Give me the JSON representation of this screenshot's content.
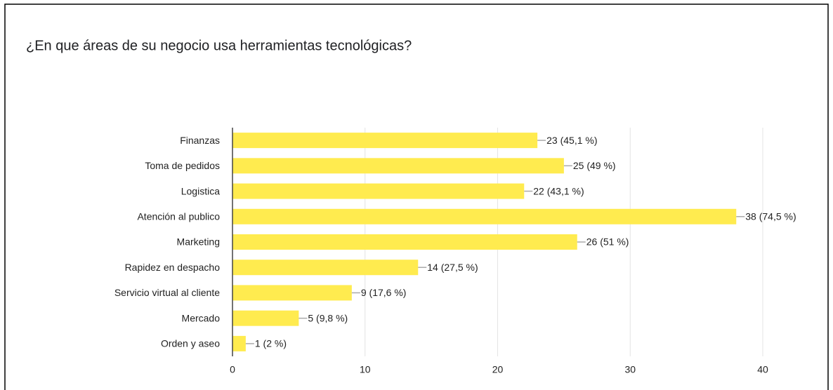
{
  "chart_data": {
    "type": "bar",
    "orientation": "horizontal",
    "title": "¿En que áreas de su negocio usa herramientas tecnológicas?",
    "categories": [
      "Finanzas",
      "Toma de pedidos",
      "Logistica",
      "Atención al publico",
      "Marketing",
      "Rapidez en despacho",
      "Servicio virtual al cliente",
      "Mercado",
      "Orden y aseo"
    ],
    "values": [
      23,
      25,
      22,
      38,
      26,
      14,
      9,
      5,
      1
    ],
    "value_labels": [
      "23 (45,1 %)",
      "25 (49 %)",
      "22 (43,1 %)",
      "38 (74,5 %)",
      "26 (51 %)",
      "14 (27,5 %)",
      "9 (17,6 %)",
      "5 (9,8 %)",
      "1 (2 %)"
    ],
    "color": "#ffeb4f",
    "xlim": [
      0,
      40
    ],
    "xticks": [
      0,
      10,
      20,
      30,
      40
    ],
    "grid": true
  }
}
